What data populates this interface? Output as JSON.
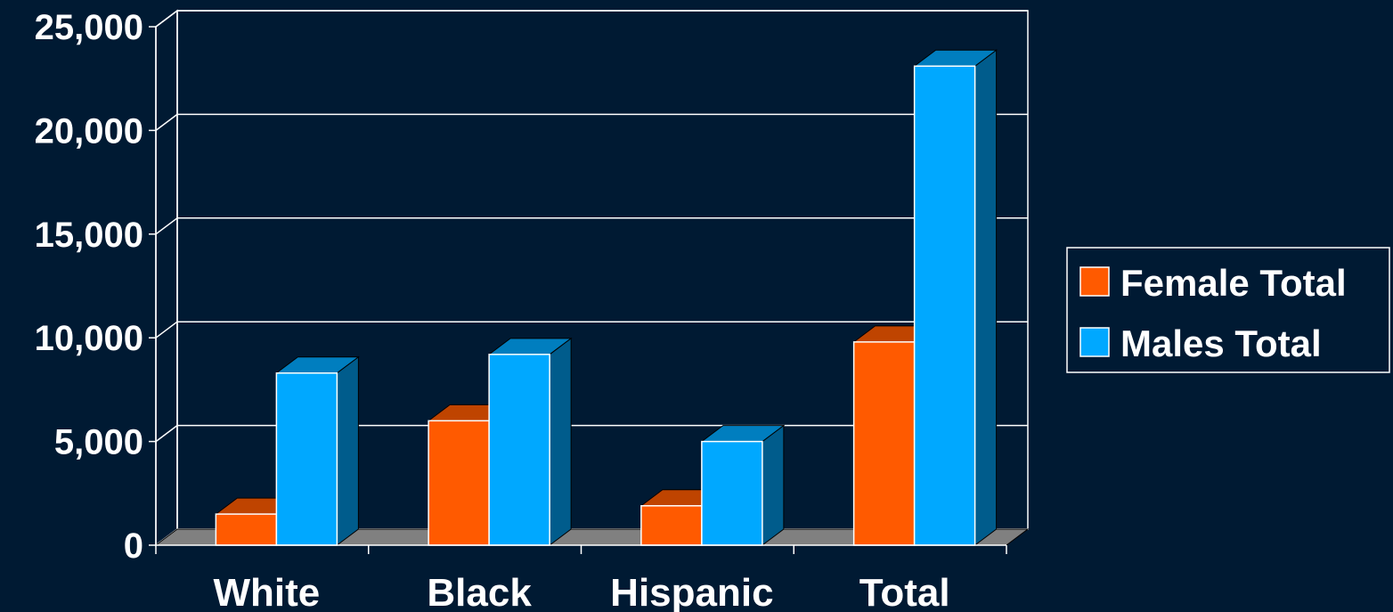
{
  "chart_data": {
    "type": "bar",
    "style": "3d-clustered-column",
    "categories": [
      "White",
      "Black",
      "Hispanic",
      "Total"
    ],
    "series": [
      {
        "name": "Female Total",
        "values": [
          1500,
          6000,
          1900,
          9800
        ],
        "color": "#ff5a00"
      },
      {
        "name": "Males Total",
        "values": [
          8300,
          9200,
          5000,
          23100
        ],
        "color": "#00a8ff"
      }
    ],
    "ylim": [
      0,
      25000
    ],
    "yticks": [
      0,
      5000,
      10000,
      15000,
      20000,
      25000
    ],
    "ytick_labels": [
      "0",
      "5,000",
      "10,000",
      "15,000",
      "20,000",
      "25,000"
    ],
    "grid": true,
    "legend_position": "right",
    "colors": {
      "background": "#001a33",
      "grid": "#ffffff",
      "floor": "#808080",
      "text": "#ffffff"
    }
  }
}
